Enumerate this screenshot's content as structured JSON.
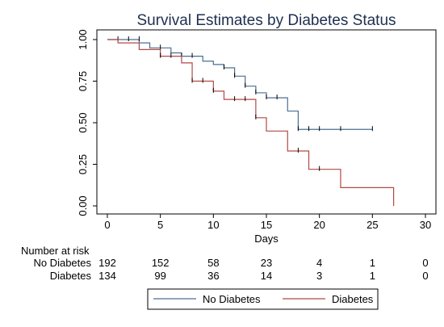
{
  "chart_data": {
    "type": "line",
    "title": "Survival Estimates by Diabetes Status",
    "xlabel": "Days",
    "ylabel": "",
    "xlim": [
      0,
      30
    ],
    "ylim": [
      0,
      1
    ],
    "x_ticks": [
      "0",
      "5",
      "10",
      "15",
      "20",
      "25",
      "30"
    ],
    "y_ticks": [
      "0.00",
      "0.25",
      "0.50",
      "0.75",
      "1.00"
    ],
    "grid": false,
    "legend_position": "bottom",
    "series": [
      {
        "name": "No Diabetes",
        "color": "#4a6f94",
        "steps": [
          [
            0,
            1.0
          ],
          [
            3,
            0.98
          ],
          [
            4,
            0.95
          ],
          [
            6,
            0.92
          ],
          [
            7,
            0.9
          ],
          [
            9,
            0.87
          ],
          [
            10,
            0.85
          ],
          [
            11,
            0.83
          ],
          [
            12,
            0.78
          ],
          [
            13,
            0.72
          ],
          [
            14,
            0.68
          ],
          [
            15,
            0.65
          ],
          [
            17,
            0.57
          ],
          [
            18,
            0.46
          ],
          [
            25,
            0.46
          ]
        ],
        "censored": [
          [
            1,
            1.0
          ],
          [
            2,
            1.0
          ],
          [
            3,
            1.0
          ],
          [
            5,
            0.95
          ],
          [
            7,
            0.9
          ],
          [
            8,
            0.9
          ],
          [
            11,
            0.83
          ],
          [
            12,
            0.78
          ],
          [
            13,
            0.72
          ],
          [
            14,
            0.68
          ],
          [
            15,
            0.65
          ],
          [
            16,
            0.65
          ],
          [
            18,
            0.46
          ],
          [
            19,
            0.46
          ],
          [
            20,
            0.46
          ],
          [
            22,
            0.46
          ],
          [
            25,
            0.46
          ]
        ]
      },
      {
        "name": "Diabetes",
        "color": "#b04a45",
        "steps": [
          [
            0,
            1.0
          ],
          [
            1,
            0.98
          ],
          [
            3,
            0.94
          ],
          [
            5,
            0.9
          ],
          [
            7,
            0.86
          ],
          [
            8,
            0.75
          ],
          [
            10,
            0.69
          ],
          [
            11,
            0.64
          ],
          [
            14,
            0.53
          ],
          [
            15,
            0.45
          ],
          [
            17,
            0.33
          ],
          [
            19,
            0.22
          ],
          [
            22,
            0.11
          ],
          [
            27,
            0.0
          ]
        ],
        "censored": [
          [
            5,
            0.9
          ],
          [
            6,
            0.9
          ],
          [
            8,
            0.75
          ],
          [
            9,
            0.75
          ],
          [
            10,
            0.69
          ],
          [
            12,
            0.64
          ],
          [
            13,
            0.64
          ],
          [
            14,
            0.53
          ],
          [
            18,
            0.33
          ],
          [
            20,
            0.22
          ]
        ]
      }
    ],
    "risk_table": {
      "title": "Number at risk",
      "times": [
        0,
        5,
        10,
        15,
        20,
        25,
        30
      ],
      "rows": [
        {
          "label": "No Diabetes",
          "values": [
            "192",
            "152",
            "58",
            "23",
            "4",
            "1",
            "0"
          ]
        },
        {
          "label": "Diabetes",
          "values": [
            "134",
            "99",
            "36",
            "14",
            "3",
            "1",
            "0"
          ]
        }
      ]
    }
  }
}
